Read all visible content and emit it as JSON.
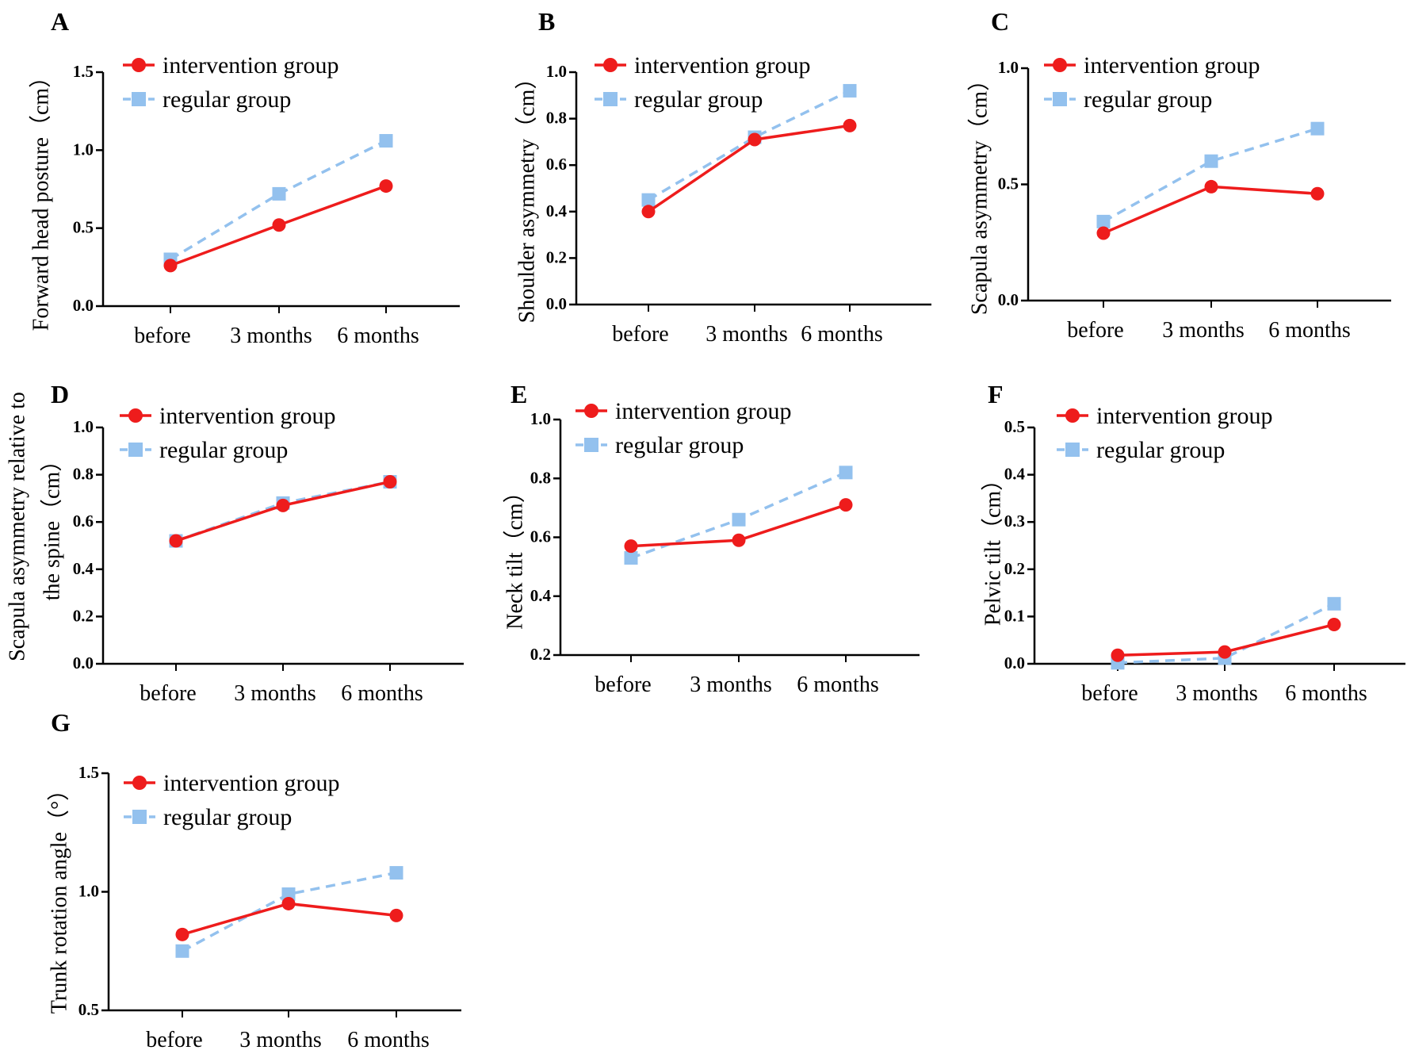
{
  "colors": {
    "intervention": "#ee1c1c",
    "regular": "#93c1ee",
    "axis": "#000000"
  },
  "legend": {
    "intervention": "intervention group",
    "regular": "regular group"
  },
  "chart_data": [
    {
      "panel": "A",
      "type": "line",
      "categories": [
        "before",
        "3 months",
        "6 months"
      ],
      "ylabel": "Forward head posture（cm）",
      "ylim": [
        0,
        1.5
      ],
      "yticks": [
        "0.0",
        "0.5",
        "1.0",
        "1.5"
      ],
      "series": [
        {
          "name": "intervention group",
          "values": [
            0.26,
            0.52,
            0.77
          ]
        },
        {
          "name": "regular group",
          "values": [
            0.3,
            0.72,
            1.06
          ]
        }
      ]
    },
    {
      "panel": "B",
      "type": "line",
      "categories": [
        "before",
        "3 months",
        "6 months"
      ],
      "ylabel": "Shoulder asymmetry（cm）",
      "ylim": [
        0,
        1.0
      ],
      "yticks": [
        "0.0",
        "0.2",
        "0.4",
        "0.6",
        "0.8",
        "1.0"
      ],
      "series": [
        {
          "name": "intervention group",
          "values": [
            0.4,
            0.71,
            0.77
          ]
        },
        {
          "name": "regular group",
          "values": [
            0.45,
            0.72,
            0.92
          ]
        }
      ]
    },
    {
      "panel": "C",
      "type": "line",
      "categories": [
        "before",
        "3 months",
        "6 months"
      ],
      "ylabel": "Scapula asymmetry（cm）",
      "ylim": [
        0,
        1.0
      ],
      "yticks": [
        "0.0",
        "0.5",
        "1.0"
      ],
      "series": [
        {
          "name": "intervention group",
          "values": [
            0.29,
            0.49,
            0.46
          ]
        },
        {
          "name": "regular group",
          "values": [
            0.34,
            0.6,
            0.74
          ]
        }
      ]
    },
    {
      "panel": "D",
      "type": "line",
      "categories": [
        "before",
        "3 months",
        "6 months"
      ],
      "ylabel": [
        "Scapula asymmetry relative to",
        "the spine（cm）"
      ],
      "ylim": [
        0,
        1.0
      ],
      "yticks": [
        "0.0",
        "0.2",
        "0.4",
        "0.6",
        "0.8",
        "1.0"
      ],
      "series": [
        {
          "name": "intervention group",
          "values": [
            0.52,
            0.67,
            0.77
          ]
        },
        {
          "name": "regular group",
          "values": [
            0.52,
            0.68,
            0.77
          ]
        }
      ]
    },
    {
      "panel": "E",
      "type": "line",
      "categories": [
        "before",
        "3 months",
        "6 months"
      ],
      "ylabel": "Neck tilt（cm）",
      "ylim": [
        0.2,
        1.0
      ],
      "yticks": [
        "0.2",
        "0.4",
        "0.6",
        "0.8",
        "1.0"
      ],
      "series": [
        {
          "name": "intervention group",
          "values": [
            0.57,
            0.59,
            0.71
          ]
        },
        {
          "name": "regular group",
          "values": [
            0.53,
            0.66,
            0.82
          ]
        }
      ]
    },
    {
      "panel": "F",
      "type": "line",
      "categories": [
        "before",
        "3 months",
        "6 months"
      ],
      "ylabel": "Pelvic tilt（cm）",
      "ylim": [
        0,
        0.5
      ],
      "yticks": [
        "0.0",
        "0.1",
        "0.2",
        "0.3",
        "0.4",
        "0.5"
      ],
      "series": [
        {
          "name": "intervention group",
          "values": [
            0.018,
            0.025,
            0.083
          ]
        },
        {
          "name": "regular group",
          "values": [
            0.002,
            0.012,
            0.127
          ]
        }
      ]
    },
    {
      "panel": "G",
      "type": "line",
      "categories": [
        "before",
        "3 months",
        "6 months"
      ],
      "ylabel": "Trunk rotation angle（°）",
      "ylim": [
        0.5,
        1.5
      ],
      "yticks": [
        "0.5",
        "1.0",
        "1.5"
      ],
      "series": [
        {
          "name": "intervention group",
          "values": [
            0.82,
            0.95,
            0.9
          ]
        },
        {
          "name": "regular group",
          "values": [
            0.75,
            0.99,
            1.08
          ]
        }
      ]
    }
  ]
}
